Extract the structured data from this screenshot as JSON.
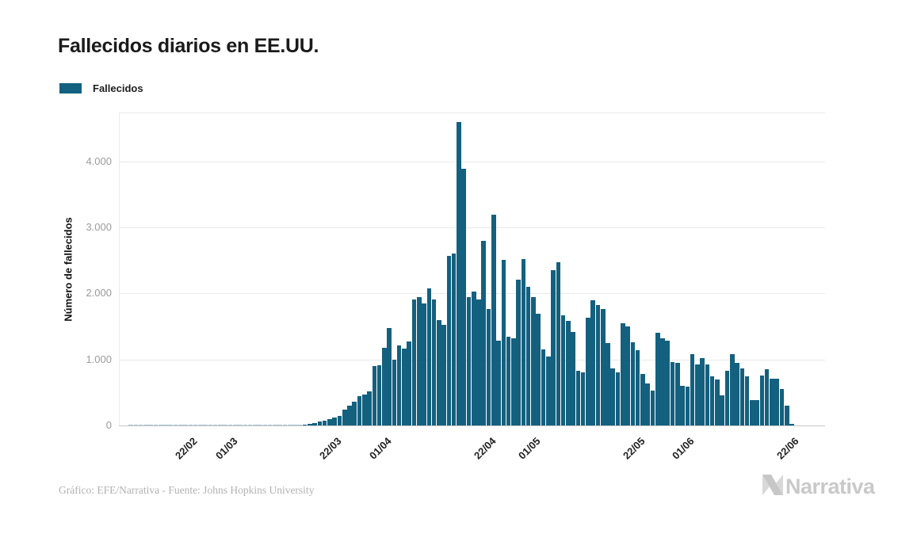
{
  "title": "Fallecidos diarios en EE.UU.",
  "legend": {
    "label": "Fallecidos",
    "swatch_color": "#14607f"
  },
  "y_axis": {
    "title": "Número de fallecidos",
    "tick_labels": [
      "0",
      "1.000",
      "2.000",
      "3.000",
      "4.000"
    ],
    "tick_values": [
      0,
      1000,
      2000,
      3000,
      4000
    ]
  },
  "x_axis": {
    "ticks": [
      {
        "label": "22/02",
        "index": 12
      },
      {
        "label": "01/03",
        "index": 20
      },
      {
        "label": "22/03",
        "index": 41
      },
      {
        "label": "01/04",
        "index": 51
      },
      {
        "label": "22/04",
        "index": 72
      },
      {
        "label": "01/05",
        "index": 81
      },
      {
        "label": "22/05",
        "index": 102
      },
      {
        "label": "01/06",
        "index": 112
      },
      {
        "label": "22/06",
        "index": 133
      }
    ]
  },
  "credit": "Gráfico: EFE/Narrativa - Fuente: Johns Hopkins University",
  "logo_text": "Narrativa",
  "colors": {
    "bar": "#14607f",
    "bar_zero": "#a4c2d2",
    "gridline": "#e9e9e9",
    "baseline": "#c8c8c8",
    "y_tick_text": "#9b9b9b",
    "x_tick_text": "#202020",
    "credit_text": "#b2b2b2",
    "logo_gray": "#c9c9c9"
  },
  "chart_data": {
    "type": "bar",
    "title": "Fallecidos diarios en EE.UU.",
    "series_name": "Fallecidos",
    "xlabel": "",
    "ylabel": "Número de fallecidos",
    "ylim": [
      0,
      4740
    ],
    "grid": true,
    "legend_position": "top-left",
    "dates": [
      "10/02",
      "11/02",
      "12/02",
      "13/02",
      "14/02",
      "15/02",
      "16/02",
      "17/02",
      "18/02",
      "19/02",
      "20/02",
      "21/02",
      "22/02",
      "23/02",
      "24/02",
      "25/02",
      "26/02",
      "27/02",
      "28/02",
      "29/02",
      "01/03",
      "02/03",
      "03/03",
      "04/03",
      "05/03",
      "06/03",
      "07/03",
      "08/03",
      "09/03",
      "10/03",
      "11/03",
      "12/03",
      "13/03",
      "14/03",
      "15/03",
      "16/03",
      "17/03",
      "18/03",
      "19/03",
      "20/03",
      "21/03",
      "22/03",
      "23/03",
      "24/03",
      "25/03",
      "26/03",
      "27/03",
      "28/03",
      "29/03",
      "30/03",
      "31/03",
      "01/04",
      "02/04",
      "03/04",
      "04/04",
      "05/04",
      "06/04",
      "07/04",
      "08/04",
      "09/04",
      "10/04",
      "11/04",
      "12/04",
      "13/04",
      "14/04",
      "15/04",
      "16/04",
      "17/04",
      "18/04",
      "19/04",
      "20/04",
      "21/04",
      "22/04",
      "23/04",
      "24/04",
      "25/04",
      "26/04",
      "27/04",
      "28/04",
      "29/04",
      "30/04",
      "01/05",
      "02/05",
      "03/05",
      "04/05",
      "05/05",
      "06/05",
      "07/05",
      "08/05",
      "09/05",
      "10/05",
      "11/05",
      "12/05",
      "13/05",
      "14/05",
      "15/05",
      "16/05",
      "17/05",
      "18/05",
      "19/05",
      "20/05",
      "21/05",
      "22/05",
      "23/05",
      "24/05",
      "25/05",
      "26/05",
      "27/05",
      "28/05",
      "29/05",
      "30/05",
      "31/05",
      "01/06",
      "02/06",
      "03/06",
      "04/06",
      "05/06",
      "06/06",
      "07/06",
      "08/06",
      "09/06",
      "10/06",
      "11/06",
      "12/06",
      "13/06",
      "14/06",
      "15/06",
      "16/06",
      "17/06",
      "18/06",
      "19/06",
      "20/06",
      "21/06",
      "22/06"
    ],
    "values": [
      0,
      0,
      0,
      0,
      0,
      0,
      0,
      0,
      0,
      0,
      0,
      0,
      0,
      0,
      0,
      0,
      0,
      0,
      0,
      1,
      1,
      5,
      1,
      4,
      2,
      3,
      2,
      3,
      4,
      4,
      7,
      3,
      8,
      9,
      12,
      18,
      26,
      42,
      60,
      75,
      95,
      120,
      150,
      240,
      300,
      365,
      440,
      465,
      515,
      895,
      915,
      1180,
      1480,
      1000,
      1210,
      1170,
      1270,
      1910,
      1950,
      1850,
      2080,
      1910,
      1600,
      1520,
      2570,
      2600,
      4600,
      3890,
      1945,
      2025,
      1910,
      2800,
      1760,
      3195,
      1280,
      2505,
      1340,
      1320,
      2205,
      2525,
      2100,
      1950,
      1690,
      1150,
      1040,
      2350,
      2470,
      1670,
      1590,
      1420,
      830,
      810,
      1630,
      1900,
      1830,
      1760,
      1250,
      865,
      810,
      1545,
      1505,
      1265,
      1140,
      785,
      640,
      530,
      1400,
      1325,
      1280,
      960,
      945,
      605,
      590,
      1085,
      925,
      1025,
      925,
      750,
      700,
      458,
      830,
      1080,
      950,
      870,
      745,
      385,
      385,
      760,
      855,
      710,
      710,
      555,
      300,
      25
    ]
  }
}
